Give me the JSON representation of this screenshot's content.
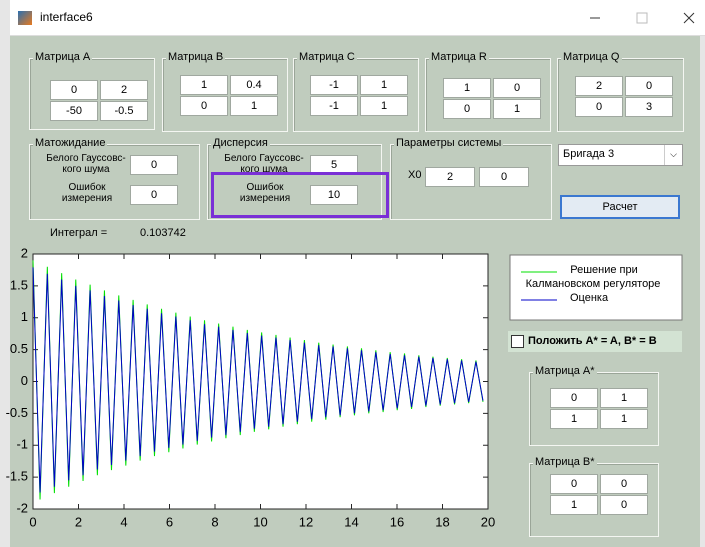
{
  "window": {
    "title": "interface6"
  },
  "matrices": [
    {
      "title": "Матрица A",
      "cells": [
        [
          "0",
          "2"
        ],
        [
          "-50",
          "-0.5"
        ]
      ]
    },
    {
      "title": "Матрица B",
      "cells": [
        [
          "1",
          "0.4"
        ],
        [
          "0",
          "1"
        ]
      ]
    },
    {
      "title": "Матрица C",
      "cells": [
        [
          "-1",
          "1"
        ],
        [
          "-1",
          "1"
        ]
      ]
    },
    {
      "title": "Матрица R",
      "cells": [
        [
          "1",
          "0"
        ],
        [
          "0",
          "1"
        ]
      ]
    },
    {
      "title": "Матрица Q",
      "cells": [
        [
          "2",
          "0"
        ],
        [
          "0",
          "3"
        ]
      ]
    },
    {
      "title": "Матрица A*",
      "cells": [
        [
          "0",
          "1"
        ],
        [
          "1",
          "1"
        ]
      ]
    },
    {
      "title": "Матрица B*",
      "cells": [
        [
          "0",
          "0"
        ],
        [
          "1",
          "0"
        ]
      ]
    }
  ],
  "expectation": {
    "title": "Матожидание",
    "noise_label": "Белого Гауссовс-кого шума",
    "noise_value": "0",
    "error_label": "Ошибок измерения",
    "error_value": "0"
  },
  "variance": {
    "title": "Дисперсия",
    "noise_label": "Белого Гауссовс-кого шума",
    "noise_value": "5",
    "error_label": "Ошибок измерения",
    "error_value": "10"
  },
  "system_params": {
    "title": "Параметры системы",
    "x0_label": "X0",
    "x0": [
      "2",
      "0"
    ]
  },
  "dropdown": "Бригада 3",
  "button": "Расчет",
  "integral_label": "Интеграл =",
  "integral_value": "0.103742",
  "checkbox_label": "Положить A* = A, B* = B",
  "chart_data": {
    "type": "line",
    "x": [
      0,
      0.31,
      0.63,
      0.94,
      1.26,
      1.57,
      1.88,
      2.2,
      2.51,
      2.83,
      3.14,
      3.45,
      3.77,
      4.08,
      4.4,
      4.71,
      5.02,
      5.34,
      5.65,
      5.97,
      6.28,
      6.59,
      6.91,
      7.22,
      7.54,
      7.85,
      8.16,
      8.48,
      8.79,
      9.11,
      9.42,
      9.73,
      10.05,
      10.36,
      10.68,
      10.99,
      11.3,
      11.62,
      11.93,
      12.25,
      12.56,
      12.87,
      13.19,
      13.5,
      13.82,
      14.13,
      14.44,
      14.76,
      15.07,
      15.39,
      15.7,
      16.01,
      16.33,
      16.64,
      16.96,
      17.27,
      17.58,
      17.9,
      18.21,
      18.53,
      18.84,
      19.15,
      19.47,
      19.78
    ],
    "series": [
      {
        "name": "Решение при Калмановском регуляторе",
        "color": "#00e000",
        "values": [
          1.9,
          -1.85,
          1.8,
          -1.75,
          1.7,
          -1.65,
          1.6,
          -1.56,
          1.52,
          -1.47,
          1.43,
          -1.39,
          1.35,
          -1.32,
          1.28,
          -1.24,
          1.21,
          -1.17,
          1.14,
          -1.11,
          1.08,
          -1.05,
          1.02,
          -0.99,
          0.96,
          -0.94,
          0.91,
          -0.89,
          0.86,
          -0.84,
          0.81,
          -0.79,
          0.77,
          -0.75,
          0.73,
          -0.71,
          0.69,
          -0.67,
          0.65,
          -0.63,
          0.61,
          -0.6,
          0.58,
          -0.56,
          0.55,
          -0.53,
          0.52,
          -0.5,
          0.49,
          -0.48,
          0.46,
          -0.45,
          0.44,
          -0.43,
          0.41,
          -0.4,
          0.39,
          -0.38,
          0.37,
          -0.36,
          0.35,
          -0.34,
          0.33,
          -0.32
        ]
      },
      {
        "name": "Оценка",
        "color": "#0000c8",
        "values": [
          1.79,
          -1.74,
          1.69,
          -1.65,
          1.6,
          -1.55,
          1.5,
          -1.47,
          1.43,
          -1.38,
          1.34,
          -1.31,
          1.27,
          -1.24,
          1.2,
          -1.17,
          1.14,
          -1.1,
          1.07,
          -1.04,
          1.02,
          -0.99,
          0.96,
          -0.93,
          0.9,
          -0.88,
          0.86,
          -0.84,
          0.81,
          -0.79,
          0.76,
          -0.74,
          0.72,
          -0.71,
          0.69,
          -0.67,
          0.65,
          -0.63,
          0.61,
          -0.59,
          0.57,
          -0.56,
          0.55,
          -0.53,
          0.52,
          -0.5,
          0.49,
          -0.47,
          0.46,
          -0.45,
          0.43,
          -0.42,
          0.41,
          -0.4,
          0.39,
          -0.38,
          0.37,
          -0.36,
          0.35,
          -0.34,
          0.33,
          -0.32,
          0.31,
          -0.3
        ]
      }
    ],
    "xlim": [
      0,
      20
    ],
    "ylim": [
      -2,
      2
    ],
    "xticks": [
      0,
      2,
      4,
      6,
      8,
      10,
      12,
      14,
      16,
      18,
      20
    ],
    "yticks": [
      -2,
      -1.5,
      -1,
      -0.5,
      0,
      0.5,
      1,
      1.5,
      2
    ]
  }
}
